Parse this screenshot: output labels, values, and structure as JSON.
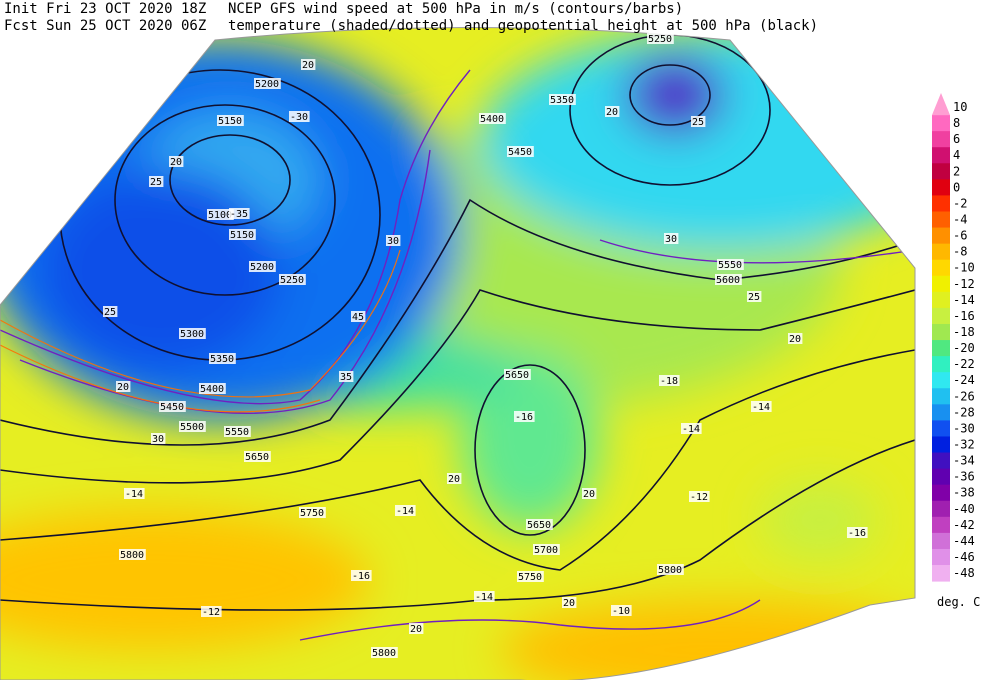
{
  "header": {
    "init": "Init  Fri 23 OCT 2020 18Z",
    "fcst": "Fcst Sun 25 OCT 2020 06Z",
    "title1": "NCEP GFS wind speed at 500 hPa in m/s (contours/barbs)",
    "title2": "temperature (shaded/dotted) and geopotential height at 500 hPa (black)"
  },
  "colorbar": {
    "levels": [
      "10",
      "8",
      "6",
      "4",
      "2",
      "0",
      "-2",
      "-4",
      "-6",
      "-8",
      "-10",
      "-12",
      "-14",
      "-16",
      "-18",
      "-20",
      "-22",
      "-24",
      "-26",
      "-28",
      "-30",
      "-32",
      "-34",
      "-36",
      "-38",
      "-40",
      "-42",
      "-44",
      "-46",
      "-48"
    ],
    "colors": [
      "#ff9ed2",
      "#ff69c0",
      "#f040a0",
      "#d01070",
      "#c00040",
      "#e00010",
      "#ff3000",
      "#ff6000",
      "#ff9000",
      "#ffb800",
      "#ffd800",
      "#f0f000",
      "#e0f020",
      "#c8f040",
      "#a0e850",
      "#50e880",
      "#30f0c0",
      "#30e8f0",
      "#20c0f0",
      "#1890f0",
      "#1050f0",
      "#0020e0",
      "#4010c0",
      "#6000b0",
      "#8000a8",
      "#a020b0",
      "#c040c0",
      "#d070d8",
      "#e090e8",
      "#f0b0f0"
    ],
    "unit": "deg. C"
  },
  "map_labels": [
    "5200",
    "5150",
    "5100",
    "5150",
    "5200",
    "5250",
    "5300",
    "5350",
    "5400",
    "5450",
    "5500",
    "5550",
    "5650",
    "5750",
    "5800",
    "5800",
    "5800",
    "5750",
    "5700",
    "5650",
    "5650",
    "5600",
    "5550",
    "5450",
    "5400",
    "5350",
    "5250",
    "20",
    "-30",
    "25",
    "20",
    "25",
    "20",
    "-35",
    "30",
    "45",
    "35",
    "30",
    "-14",
    "-14",
    "-16",
    "-14",
    "-10",
    "-14",
    "-12",
    "-16",
    "-14",
    "-16",
    "20",
    "20",
    "20",
    "20",
    "25",
    "20",
    "30",
    "25",
    "20",
    "-18",
    "-12"
  ]
}
